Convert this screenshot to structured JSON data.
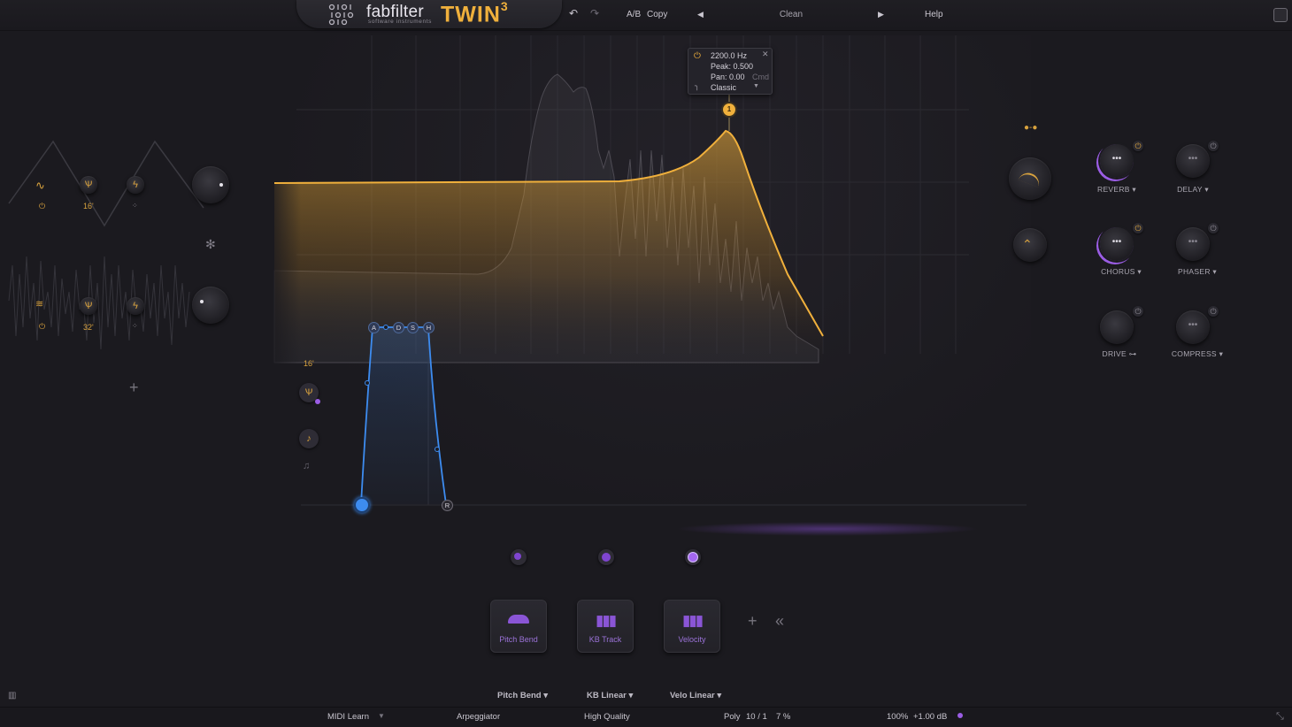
{
  "header": {
    "brand": "fabfilter",
    "brand_sub": "software instruments",
    "product": "TWIN",
    "product_version": "3",
    "ab_label": "A/B",
    "copy_label": "Copy",
    "preset_name": "Clean",
    "help_label": "Help"
  },
  "oscillators": [
    {
      "pitch": "16'"
    },
    {
      "pitch": "32'"
    }
  ],
  "filter_tooltip": {
    "frequency": "2200.0 Hz",
    "peak": "Peak: 0.500",
    "pan": "Pan: 0.00",
    "modifier": "Cmd",
    "type": "Classic",
    "band_number": "1"
  },
  "envelope": {
    "stages": [
      "A",
      "D",
      "S",
      "H",
      "R"
    ],
    "voice_pitch": "16'"
  },
  "effects": [
    {
      "label": "REVERB",
      "enabled": true
    },
    {
      "label": "DELAY",
      "enabled": false
    },
    {
      "label": "CHORUS",
      "enabled": true
    },
    {
      "label": "PHASER",
      "enabled": false
    },
    {
      "label": "DRIVE",
      "enabled": false
    },
    {
      "label": "COMPRESS",
      "enabled": false
    }
  ],
  "mod_sources": [
    {
      "label": "Pitch Bend"
    },
    {
      "label": "KB Track"
    },
    {
      "label": "Velocity"
    }
  ],
  "mod_selectors": [
    {
      "label": "Pitch Bend"
    },
    {
      "label": "KB Linear"
    },
    {
      "label": "Velo Linear"
    }
  ],
  "footer": {
    "midi_learn": "MIDI Learn",
    "arpeggiator": "Arpeggiator",
    "quality": "High Quality",
    "voice_mode": "Poly",
    "voices": "10 / 1",
    "cpu": "7 %",
    "zoom": "100%",
    "output_gain": "+1.00 dB"
  },
  "colors": {
    "accent_orange": "#f0b03c",
    "accent_purple": "#9b5de5",
    "envelope_blue": "#3d8cf0",
    "background": "#1b1a1f"
  }
}
